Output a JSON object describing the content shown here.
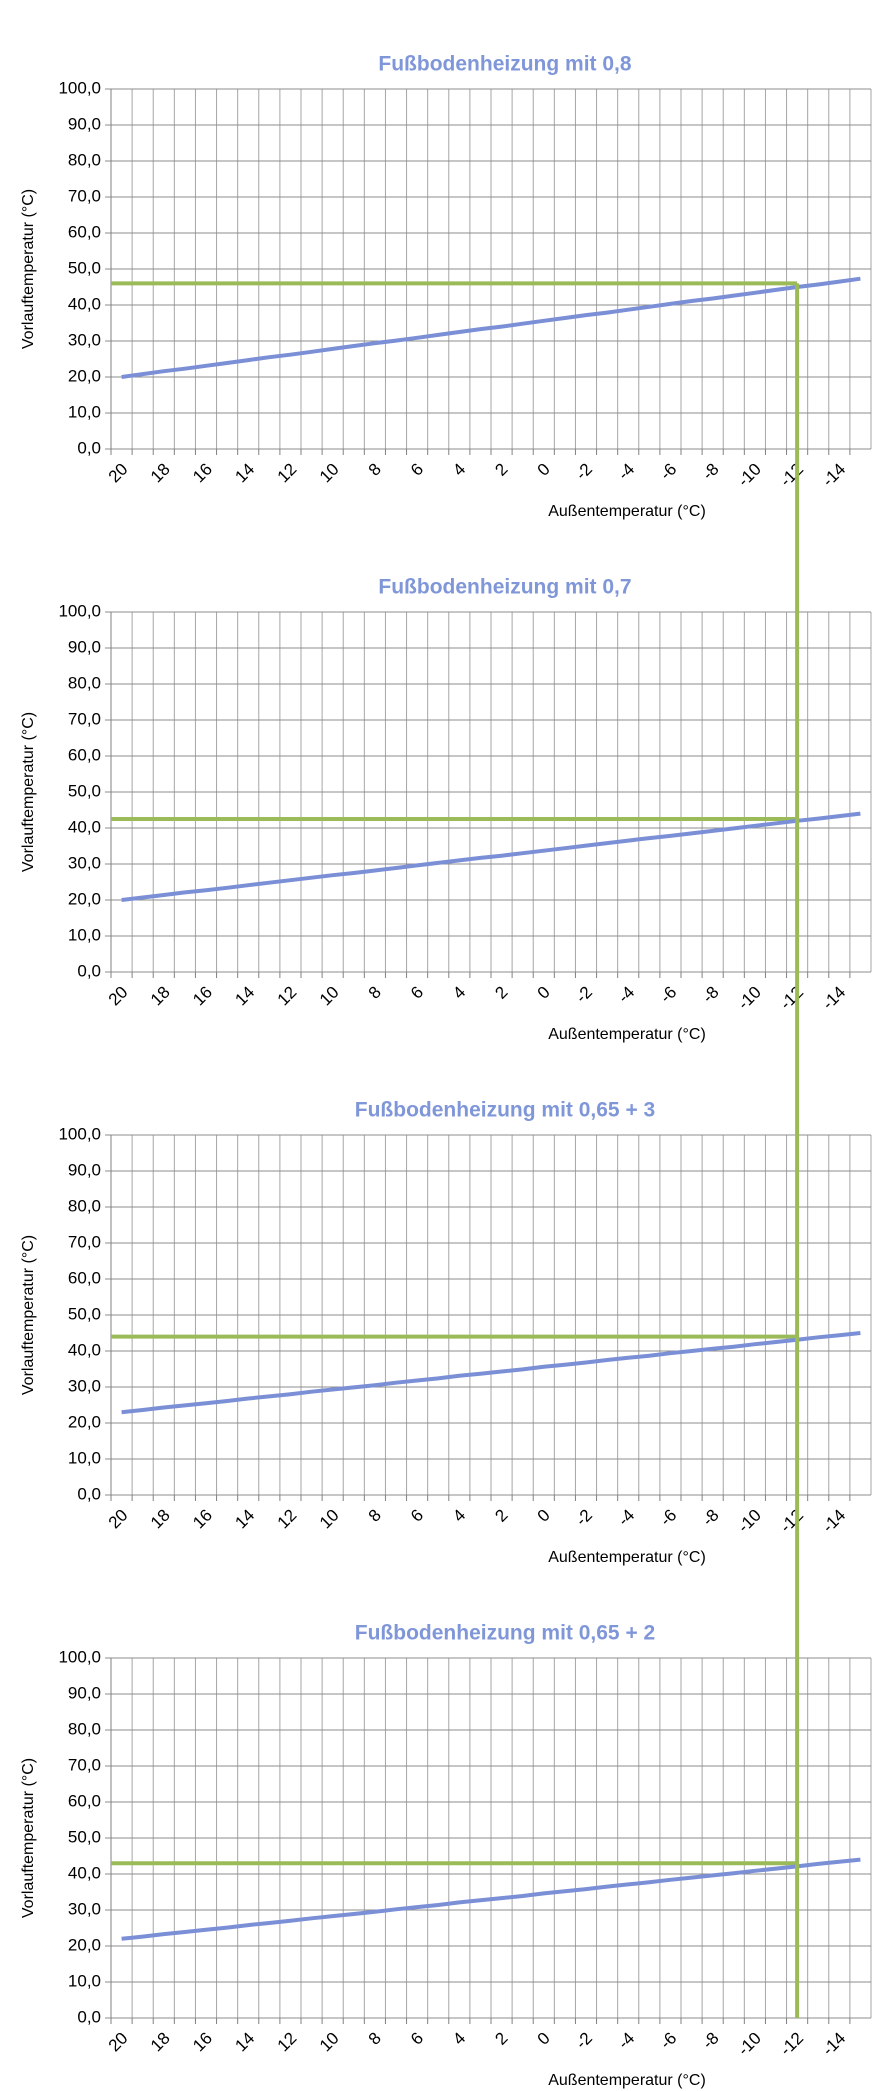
{
  "chart_data": [
    {
      "type": "line",
      "title": "Fußbodenheizung mit 0,8",
      "x_label": "Außentemperatur (°C)",
      "y_label": "Vorlauftemperatur (°C)",
      "categories": [
        "20",
        null,
        "18",
        null,
        "16",
        null,
        "14",
        null,
        "12",
        null,
        "10",
        null,
        "8",
        null,
        "6",
        null,
        "4",
        null,
        "2",
        null,
        "0",
        null,
        "-2",
        null,
        "-4",
        null,
        "-6",
        null,
        "-8",
        null,
        "-10",
        null,
        "-12",
        null,
        "-14",
        null
      ],
      "series": [
        {
          "color": "#7b8fd6",
          "values": [
            20,
            20.8,
            21.6,
            22.3,
            23.1,
            23.9,
            24.7,
            25.5,
            26.2,
            27.0,
            27.8,
            28.6,
            29.4,
            30.1,
            30.9,
            31.7,
            32.5,
            33.3,
            34.0,
            34.8,
            35.6,
            36.4,
            37.2,
            37.9,
            38.7,
            39.5,
            40.3,
            41.1,
            41.8,
            42.6,
            43.4,
            44.2,
            45.0,
            45.7,
            46.5,
            47.3
          ]
        }
      ],
      "reference": {
        "x": "-12",
        "y": 46,
        "color": "#9bbb59"
      },
      "ylim": [
        0,
        100
      ],
      "yticks": [
        {
          "value": 0,
          "label": "0,0"
        },
        {
          "value": 10,
          "label": "10,0"
        },
        {
          "value": 20,
          "label": "20,0"
        },
        {
          "value": 30,
          "label": "30,0"
        },
        {
          "value": 40,
          "label": "40,0"
        },
        {
          "value": 50,
          "label": "50,0"
        },
        {
          "value": 60,
          "label": "60,0"
        },
        {
          "value": 70,
          "label": "70,0"
        },
        {
          "value": 80,
          "label": "80,0"
        },
        {
          "value": 90,
          "label": "90,0"
        },
        {
          "value": 100,
          "label": "100,0"
        }
      ],
      "grid": true
    },
    {
      "type": "line",
      "title": "Fußbodenheizung mit 0,7",
      "x_label": "Außentemperatur (°C)",
      "y_label": "Vorlauftemperatur (°C)",
      "categories": [
        "20",
        null,
        "18",
        null,
        "16",
        null,
        "14",
        null,
        "12",
        null,
        "10",
        null,
        "8",
        null,
        "6",
        null,
        "4",
        null,
        "2",
        null,
        "0",
        null,
        "-2",
        null,
        "-4",
        null,
        "-6",
        null,
        "-8",
        null,
        "-10",
        null,
        "-12",
        null,
        "-14",
        null
      ],
      "series": [
        {
          "color": "#7b8fd6",
          "values": [
            20,
            20.7,
            21.4,
            22.1,
            22.7,
            23.4,
            24.1,
            24.8,
            25.5,
            26.2,
            26.9,
            27.5,
            28.2,
            28.9,
            29.6,
            30.3,
            31.0,
            31.7,
            32.3,
            33.0,
            33.7,
            34.4,
            35.1,
            35.8,
            36.5,
            37.2,
            37.8,
            38.5,
            39.2,
            39.9,
            40.6,
            41.3,
            42.0,
            42.6,
            43.3,
            44.0
          ]
        }
      ],
      "reference": {
        "x": "-12",
        "y": 42.5,
        "color": "#9bbb59"
      },
      "ylim": [
        0,
        100
      ],
      "yticks": [
        {
          "value": 0,
          "label": "0,0"
        },
        {
          "value": 10,
          "label": "10,0"
        },
        {
          "value": 20,
          "label": "20,0"
        },
        {
          "value": 30,
          "label": "30,0"
        },
        {
          "value": 40,
          "label": "40,0"
        },
        {
          "value": 50,
          "label": "50,0"
        },
        {
          "value": 60,
          "label": "60,0"
        },
        {
          "value": 70,
          "label": "70,0"
        },
        {
          "value": 80,
          "label": "80,0"
        },
        {
          "value": 90,
          "label": "90,0"
        },
        {
          "value": 100,
          "label": "100,0"
        }
      ],
      "grid": true
    },
    {
      "type": "line",
      "title": "Fußbodenheizung mit 0,65 + 3",
      "x_label": "Außentemperatur (°C)",
      "y_label": "Vorlauftemperatur (°C)",
      "categories": [
        "20",
        null,
        "18",
        null,
        "16",
        null,
        "14",
        null,
        "12",
        null,
        "10",
        null,
        "8",
        null,
        "6",
        null,
        "4",
        null,
        "2",
        null,
        "0",
        null,
        "-2",
        null,
        "-4",
        null,
        "-6",
        null,
        "-8",
        null,
        "-10",
        null,
        "-12",
        null,
        "-14",
        null
      ],
      "series": [
        {
          "color": "#7b8fd6",
          "values": [
            23,
            23.6,
            24.3,
            24.9,
            25.5,
            26.1,
            26.8,
            27.4,
            28.0,
            28.7,
            29.3,
            29.9,
            30.5,
            31.2,
            31.8,
            32.4,
            33.1,
            33.7,
            34.3,
            34.9,
            35.6,
            36.2,
            36.8,
            37.5,
            38.1,
            38.7,
            39.4,
            40.0,
            40.6,
            41.2,
            41.9,
            42.5,
            43.1,
            43.8,
            44.4,
            45.0
          ]
        }
      ],
      "reference": {
        "x": "-12",
        "y": 44,
        "color": "#9bbb59"
      },
      "ylim": [
        0,
        100
      ],
      "yticks": [
        {
          "value": 0,
          "label": "0,0"
        },
        {
          "value": 10,
          "label": "10,0"
        },
        {
          "value": 20,
          "label": "20,0"
        },
        {
          "value": 30,
          "label": "30,0"
        },
        {
          "value": 40,
          "label": "40,0"
        },
        {
          "value": 50,
          "label": "50,0"
        },
        {
          "value": 60,
          "label": "60,0"
        },
        {
          "value": 70,
          "label": "70,0"
        },
        {
          "value": 80,
          "label": "80,0"
        },
        {
          "value": 90,
          "label": "90,0"
        },
        {
          "value": 100,
          "label": "100,0"
        }
      ],
      "grid": true
    },
    {
      "type": "line",
      "title": "Fußbodenheizung mit 0,65 + 2",
      "x_label": "Außentemperatur (°C)",
      "y_label": "Vorlauftemperatur (°C)",
      "categories": [
        "20",
        null,
        "18",
        null,
        "16",
        null,
        "14",
        null,
        "12",
        null,
        "10",
        null,
        "8",
        null,
        "6",
        null,
        "4",
        null,
        "2",
        null,
        "0",
        null,
        "-2",
        null,
        "-4",
        null,
        "-6",
        null,
        "-8",
        null,
        "-10",
        null,
        "-12",
        null,
        "-14",
        null
      ],
      "series": [
        {
          "color": "#7b8fd6",
          "values": [
            22,
            22.6,
            23.3,
            23.9,
            24.5,
            25.1,
            25.8,
            26.4,
            27.0,
            27.7,
            28.3,
            28.9,
            29.5,
            30.2,
            30.8,
            31.4,
            32.1,
            32.7,
            33.3,
            33.9,
            34.6,
            35.2,
            35.8,
            36.5,
            37.1,
            37.7,
            38.4,
            39.0,
            39.6,
            40.2,
            40.9,
            41.5,
            42.1,
            42.8,
            43.4,
            44.0
          ]
        }
      ],
      "reference": {
        "x": "-12",
        "y": 43,
        "color": "#9bbb59"
      },
      "ylim": [
        0,
        100
      ],
      "yticks": [
        {
          "value": 0,
          "label": "0,0"
        },
        {
          "value": 10,
          "label": "10,0"
        },
        {
          "value": 20,
          "label": "20,0"
        },
        {
          "value": 30,
          "label": "30,0"
        },
        {
          "value": 40,
          "label": "40,0"
        },
        {
          "value": 50,
          "label": "50,0"
        },
        {
          "value": 60,
          "label": "60,0"
        },
        {
          "value": 70,
          "label": "70,0"
        },
        {
          "value": 80,
          "label": "80,0"
        },
        {
          "value": 90,
          "label": "90,0"
        },
        {
          "value": 100,
          "label": "100,0"
        }
      ],
      "grid": true
    }
  ]
}
